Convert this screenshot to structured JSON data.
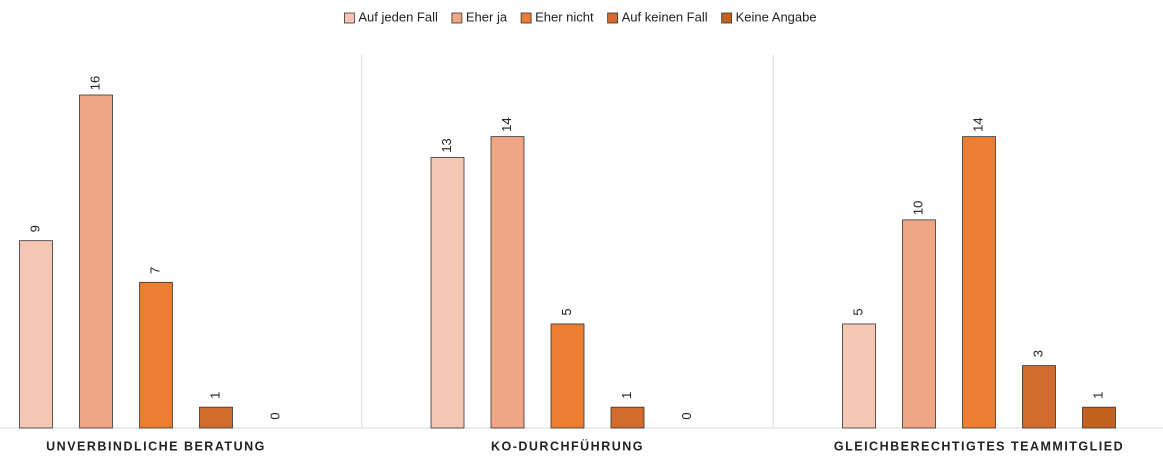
{
  "chart_data": {
    "type": "bar",
    "categories": [
      "UNVERBINDLICHE BERATUNG",
      "KO-DURCHFÜHRUNG",
      "GLEICHBERECHTIGTES TEAMMITGLIED"
    ],
    "series": [
      {
        "name": "Auf jeden Fall",
        "color": "#f5c6b3",
        "values": [
          9,
          13,
          5
        ]
      },
      {
        "name": "Eher ja",
        "color": "#f0a585",
        "values": [
          16,
          14,
          10
        ]
      },
      {
        "name": "Eher nicht",
        "color": "#ed7d31",
        "values": [
          7,
          5,
          14
        ]
      },
      {
        "name": "Auf keinen Fall",
        "color": "#d36b2c",
        "values": [
          1,
          1,
          3
        ]
      },
      {
        "name": "Keine Angabe",
        "color": "#c4611f",
        "values": [
          0,
          0,
          1
        ]
      }
    ],
    "ylim": [
      0,
      16
    ],
    "legend": "top"
  }
}
